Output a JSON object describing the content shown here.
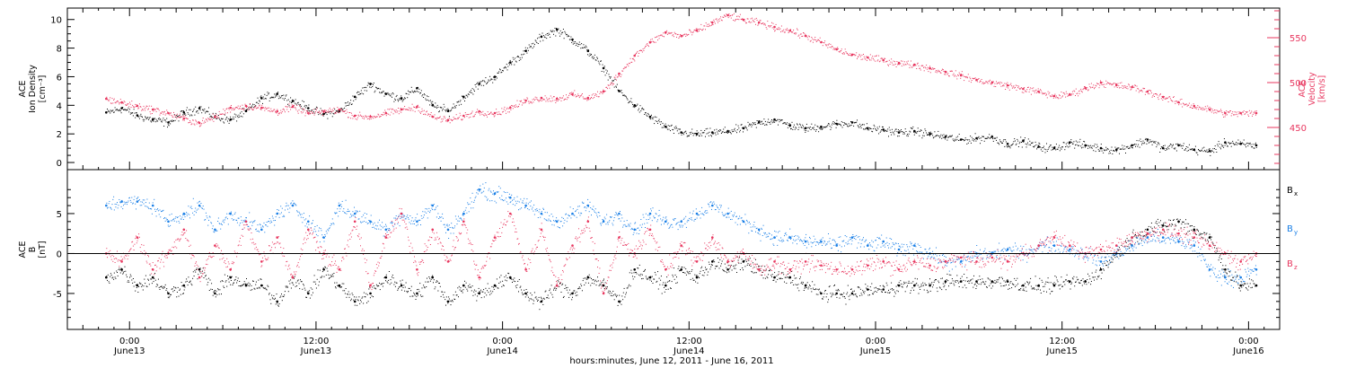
{
  "chart_data": [
    {
      "type": "scatter",
      "panel": "top",
      "ylabel_lines": [
        "ACE",
        "Ion Density",
        "[cm⁻³]"
      ],
      "ylabel_right_lines": [
        "ACE",
        "Velocity",
        "[km/s]"
      ],
      "ylim": [
        -0.5,
        10.8
      ],
      "yticks": [
        "0",
        "2",
        "4",
        "6",
        "8",
        "10"
      ],
      "ylim_right": [
        403,
        583
      ],
      "yticks_right": [
        "450",
        "500",
        "550"
      ],
      "series": [
        {
          "name": "Ion Density",
          "axis": "left",
          "color": "#000000",
          "x": [
            -1.5,
            -0.5,
            0.5,
            1.5,
            2.5,
            3.5,
            4.5,
            5.5,
            6.5,
            7.5,
            8.5,
            9.5,
            10.5,
            11.5,
            12.5,
            13.5,
            14.5,
            15.5,
            16.5,
            17.5,
            18.5,
            19.5,
            20.5,
            21.5,
            22.5,
            23.5,
            24.5,
            25.5,
            26.5,
            27.5,
            28.5,
            29.5,
            30.5,
            31.5,
            32.5,
            33.5,
            34.5,
            35.5,
            36.5,
            37.5,
            38.5,
            39.5,
            40.5,
            41.5,
            42.5,
            43.5,
            44.5,
            45.5,
            46.5,
            47.5,
            48.5,
            49.5,
            50.5,
            51.5,
            52.5,
            53.5,
            54.5,
            55.5,
            56.5,
            57.5,
            58.5,
            59.5,
            60.5,
            61.5,
            62.5,
            63.5,
            64.5,
            65.5,
            66.5,
            67.5,
            68.5,
            69.5,
            70.5,
            71.5,
            72.5
          ],
          "y": [
            3.5,
            3.8,
            3.3,
            3.0,
            2.8,
            3.5,
            3.8,
            3.2,
            3.0,
            3.6,
            4.5,
            4.8,
            4.3,
            3.8,
            3.4,
            3.6,
            4.6,
            5.5,
            4.8,
            4.5,
            5.2,
            4.0,
            3.6,
            4.6,
            5.5,
            6.0,
            7.0,
            7.8,
            8.8,
            9.3,
            8.6,
            7.8,
            6.6,
            5.0,
            4.0,
            3.2,
            2.5,
            2.1,
            2.0,
            2.1,
            2.2,
            2.4,
            2.8,
            3.0,
            2.6,
            2.4,
            2.5,
            2.7,
            2.8,
            2.4,
            2.3,
            2.1,
            2.2,
            2.0,
            1.8,
            1.6,
            1.7,
            1.8,
            1.3,
            1.5,
            1.1,
            1.0,
            1.4,
            1.2,
            1.0,
            0.9,
            1.2,
            1.6,
            1.0,
            1.2,
            0.9,
            0.8,
            1.4,
            1.3,
            1.2
          ]
        },
        {
          "name": "Velocity",
          "axis": "right",
          "color": "#e8375f",
          "x": [
            -1.5,
            -0.5,
            0.5,
            1.5,
            2.5,
            3.5,
            4.5,
            5.5,
            6.5,
            7.5,
            8.5,
            9.5,
            10.5,
            11.5,
            12.5,
            13.5,
            14.5,
            15.5,
            16.5,
            17.5,
            18.5,
            19.5,
            20.5,
            21.5,
            22.5,
            23.5,
            24.5,
            25.5,
            26.5,
            27.5,
            28.5,
            29.5,
            30.5,
            31.5,
            32.5,
            33.5,
            34.5,
            35.5,
            36.5,
            37.5,
            38.5,
            39.5,
            40.5,
            41.5,
            42.5,
            43.5,
            44.5,
            45.5,
            46.5,
            47.5,
            48.5,
            49.5,
            50.5,
            51.5,
            52.5,
            53.5,
            54.5,
            55.5,
            56.5,
            57.5,
            58.5,
            59.5,
            60.5,
            61.5,
            62.5,
            63.5,
            64.5,
            65.5,
            66.5,
            67.5,
            68.5,
            69.5,
            70.5,
            71.5,
            72.5
          ],
          "y": [
            482,
            478,
            474,
            470,
            466,
            460,
            455,
            462,
            472,
            474,
            472,
            468,
            473,
            466,
            468,
            470,
            463,
            462,
            466,
            470,
            473,
            462,
            458,
            463,
            468,
            466,
            472,
            480,
            483,
            482,
            487,
            483,
            490,
            510,
            530,
            545,
            556,
            552,
            558,
            567,
            575,
            570,
            567,
            562,
            558,
            552,
            545,
            537,
            531,
            528,
            525,
            522,
            520,
            516,
            512,
            508,
            503,
            500,
            497,
            493,
            490,
            485,
            487,
            494,
            500,
            497,
            495,
            490,
            484,
            478,
            474,
            470,
            466,
            466,
            466
          ]
        }
      ]
    },
    {
      "type": "scatter",
      "panel": "bottom",
      "ylabel_lines": [
        "ACE",
        "B",
        "[nT]"
      ],
      "ylim": [
        -9.5,
        10.5
      ],
      "yticks": [
        "-5",
        "0",
        "5"
      ],
      "reference_line": 0,
      "series": [
        {
          "name": "Bx",
          "label_main": "B",
          "label_sub": "x",
          "color": "#000000",
          "x": [
            -1.5,
            -0.5,
            0.5,
            1.5,
            2.5,
            3.5,
            4.5,
            5.5,
            6.5,
            7.5,
            8.5,
            9.5,
            10.5,
            11.5,
            12.5,
            13.5,
            14.5,
            15.5,
            16.5,
            17.5,
            18.5,
            19.5,
            20.5,
            21.5,
            22.5,
            23.5,
            24.5,
            25.5,
            26.5,
            27.5,
            28.5,
            29.5,
            30.5,
            31.5,
            32.5,
            33.5,
            34.5,
            35.5,
            36.5,
            37.5,
            38.5,
            39.5,
            40.5,
            41.5,
            42.5,
            43.5,
            44.5,
            45.5,
            46.5,
            47.5,
            48.5,
            49.5,
            50.5,
            51.5,
            52.5,
            53.5,
            54.5,
            55.5,
            56.5,
            57.5,
            58.5,
            59.5,
            60.5,
            61.5,
            62.5,
            63.5,
            64.5,
            65.5,
            66.5,
            67.5,
            68.5,
            69.5,
            70.5,
            71.5,
            72.5
          ],
          "y": [
            -3,
            -2,
            -4,
            -3,
            -5,
            -4,
            -2,
            -5,
            -3,
            -4,
            -4,
            -6,
            -3,
            -5,
            -2,
            -4,
            -6,
            -5,
            -3,
            -4,
            -5,
            -3,
            -6,
            -4,
            -5,
            -4,
            -3,
            -5,
            -6,
            -4,
            -5,
            -3,
            -4,
            -6,
            -2,
            -3,
            -4,
            -2,
            -3,
            -1,
            -2,
            -1,
            -2,
            -3,
            -3,
            -4,
            -5,
            -5,
            -5,
            -4.5,
            -4.5,
            -4,
            -4,
            -4,
            -3.5,
            -3.5,
            -3.5,
            -3.5,
            -3.5,
            -4,
            -4,
            -4,
            -3.5,
            -3.5,
            -2,
            0,
            2,
            3,
            3.5,
            4,
            3,
            2,
            -2,
            -4,
            -4
          ]
        },
        {
          "name": "By",
          "label_main": "B",
          "label_sub": "y",
          "color": "#1a7fe6",
          "x": [
            -1.5,
            -0.5,
            0.5,
            1.5,
            2.5,
            3.5,
            4.5,
            5.5,
            6.5,
            7.5,
            8.5,
            9.5,
            10.5,
            11.5,
            12.5,
            13.5,
            14.5,
            15.5,
            16.5,
            17.5,
            18.5,
            19.5,
            20.5,
            21.5,
            22.5,
            23.5,
            24.5,
            25.5,
            26.5,
            27.5,
            28.5,
            29.5,
            30.5,
            31.5,
            32.5,
            33.5,
            34.5,
            35.5,
            36.5,
            37.5,
            38.5,
            39.5,
            40.5,
            41.5,
            42.5,
            43.5,
            44.5,
            45.5,
            46.5,
            47.5,
            48.5,
            49.5,
            50.5,
            51.5,
            52.5,
            53.5,
            54.5,
            55.5,
            56.5,
            57.5,
            58.5,
            59.5,
            60.5,
            61.5,
            62.5,
            63.5,
            64.5,
            65.5,
            66.5,
            67.5,
            68.5,
            69.5,
            70.5,
            71.5,
            72.5
          ],
          "y": [
            6,
            6.5,
            6.5,
            6,
            4,
            5,
            6,
            3,
            5,
            4,
            3,
            5,
            6,
            4,
            2,
            6,
            5,
            4,
            3,
            5,
            4,
            6,
            3,
            5,
            8,
            7.5,
            7,
            6,
            5,
            4,
            5,
            6,
            4,
            5,
            3,
            5,
            4,
            4,
            5,
            6,
            5,
            4,
            3,
            2,
            2,
            1.5,
            1.5,
            1,
            2,
            1,
            1.5,
            0.5,
            1,
            0,
            -1,
            -1,
            0,
            0,
            0.5,
            0,
            1,
            1,
            0.5,
            0,
            -1,
            0,
            1,
            2,
            2,
            1.5,
            1,
            -2,
            -3,
            -3,
            -2
          ]
        },
        {
          "name": "Bz",
          "label_main": "B",
          "label_sub": "z",
          "color": "#e8375f",
          "x": [
            -1.5,
            -0.5,
            0.5,
            1.5,
            2.5,
            3.5,
            4.5,
            5.5,
            6.5,
            7.5,
            8.5,
            9.5,
            10.5,
            11.5,
            12.5,
            13.5,
            14.5,
            15.5,
            16.5,
            17.5,
            18.5,
            19.5,
            20.5,
            21.5,
            22.5,
            23.5,
            24.5,
            25.5,
            26.5,
            27.5,
            28.5,
            29.5,
            30.5,
            31.5,
            32.5,
            33.5,
            34.5,
            35.5,
            36.5,
            37.5,
            38.5,
            39.5,
            40.5,
            41.5,
            42.5,
            43.5,
            44.5,
            45.5,
            46.5,
            47.5,
            48.5,
            49.5,
            50.5,
            51.5,
            52.5,
            53.5,
            54.5,
            55.5,
            56.5,
            57.5,
            58.5,
            59.5,
            60.5,
            61.5,
            62.5,
            63.5,
            64.5,
            65.5,
            66.5,
            67.5,
            68.5,
            69.5,
            70.5,
            71.5,
            72.5
          ],
          "y": [
            0,
            -1,
            2,
            -2,
            0,
            3,
            -3,
            1,
            -2,
            4,
            -1,
            2,
            -3,
            3,
            0,
            -2,
            4,
            -4,
            2,
            5,
            -2,
            3,
            -1,
            4,
            -3,
            2,
            5,
            -2,
            3,
            -4,
            1,
            4,
            -5,
            2,
            0,
            3,
            -2,
            1,
            -1,
            2,
            -1,
            0,
            -2,
            -1,
            -2,
            -1,
            -1.5,
            -2,
            -2,
            -1.5,
            -1,
            -2,
            -1,
            -1.5,
            -1,
            -0.5,
            -1,
            -0.5,
            -1,
            0,
            1,
            2,
            1,
            0,
            0.5,
            1,
            2,
            2.5,
            3,
            2.5,
            2,
            1,
            0,
            -1,
            0
          ]
        }
      ]
    }
  ],
  "x_axis": {
    "unit_hours_from": "June 13 00:00",
    "range": [
      -4,
      74
    ],
    "major_ticks": [
      {
        "hours": 0,
        "time": "0:00",
        "date": "June13"
      },
      {
        "hours": 12,
        "time": "12:00",
        "date": "June13"
      },
      {
        "hours": 24,
        "time": "0:00",
        "date": "June14"
      },
      {
        "hours": 36,
        "time": "12:00",
        "date": "June14"
      },
      {
        "hours": 48,
        "time": "0:00",
        "date": "June15"
      },
      {
        "hours": 60,
        "time": "12:00",
        "date": "June15"
      },
      {
        "hours": 72,
        "time": "0:00",
        "date": "June16"
      }
    ],
    "xlabel": "hours:minutes, June 12, 2011 - June 16, 2011"
  },
  "colors": {
    "black": "#000000",
    "blue": "#1a7fe6",
    "red": "#e8375f",
    "axis": "#000000"
  }
}
